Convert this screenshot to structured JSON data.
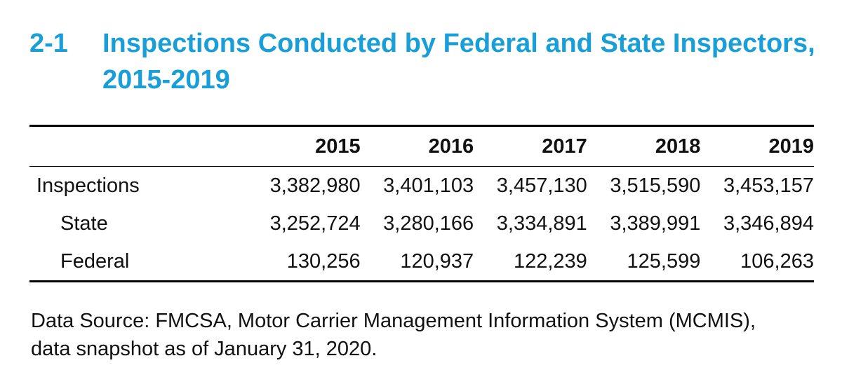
{
  "title": {
    "number": "2-1",
    "line1": "Inspections Conducted by Federal and State Inspectors,",
    "line2": "2015-2019"
  },
  "table": {
    "columns": [
      "",
      "2015",
      "2016",
      "2017",
      "2018",
      "2019"
    ],
    "rows": [
      {
        "label": "Inspections",
        "values": [
          "3,382,980",
          "3,401,103",
          "3,457,130",
          "3,515,590",
          "3,453,157"
        ]
      },
      {
        "label": "State",
        "values": [
          "3,252,724",
          "3,280,166",
          "3,334,891",
          "3,389,991",
          "3,346,894"
        ]
      },
      {
        "label": "Federal",
        "values": [
          "130,256",
          "120,937",
          "122,239",
          "125,599",
          "106,263"
        ]
      }
    ]
  },
  "source": {
    "line1": "Data Source: FMCSA, Motor Carrier Management Information System (MCMIS),",
    "line2": "data snapshot as of January 31, 2020."
  },
  "colors": {
    "title": "#1a9ed7",
    "text": "#111111",
    "rules": "#000000"
  }
}
